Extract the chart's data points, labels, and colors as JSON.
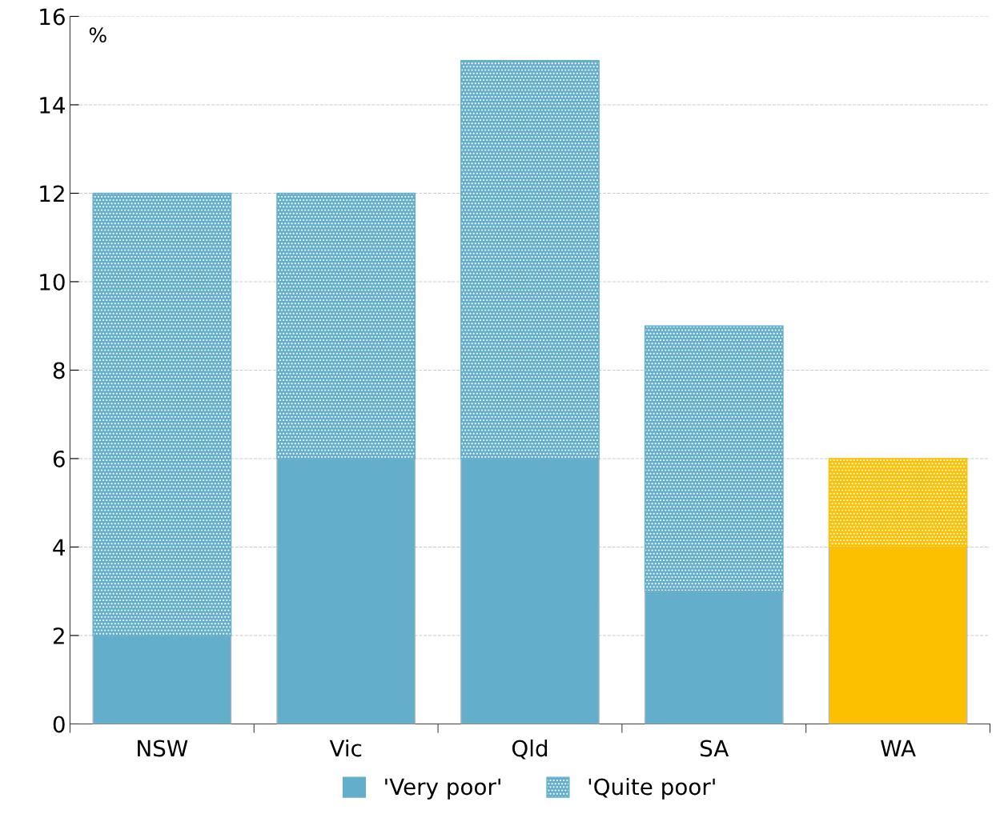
{
  "chart_data": {
    "type": "bar",
    "stacked": true,
    "ylabel": "%",
    "categories": [
      "NSW",
      "Vic",
      "Qld",
      "SA",
      "WA"
    ],
    "series": [
      {
        "name": "'Very poor'",
        "color": "#63aecb",
        "colors": [
          "#63aecb",
          "#63aecb",
          "#63aecb",
          "#63aecb",
          "#fdc000"
        ],
        "values": [
          2,
          6,
          6,
          3,
          4
        ]
      },
      {
        "name": "'Quite poor'",
        "color": "#63aecb",
        "colors": [
          "#63aecb",
          "#63aecb",
          "#63aecb",
          "#63aecb",
          "#fdc000"
        ],
        "values": [
          10,
          6,
          9,
          6,
          2
        ]
      }
    ],
    "ylim": [
      0,
      16
    ],
    "yticks": [
      0,
      2,
      4,
      6,
      8,
      10,
      12,
      14,
      16
    ],
    "grid": "y",
    "legend": "bottom"
  }
}
